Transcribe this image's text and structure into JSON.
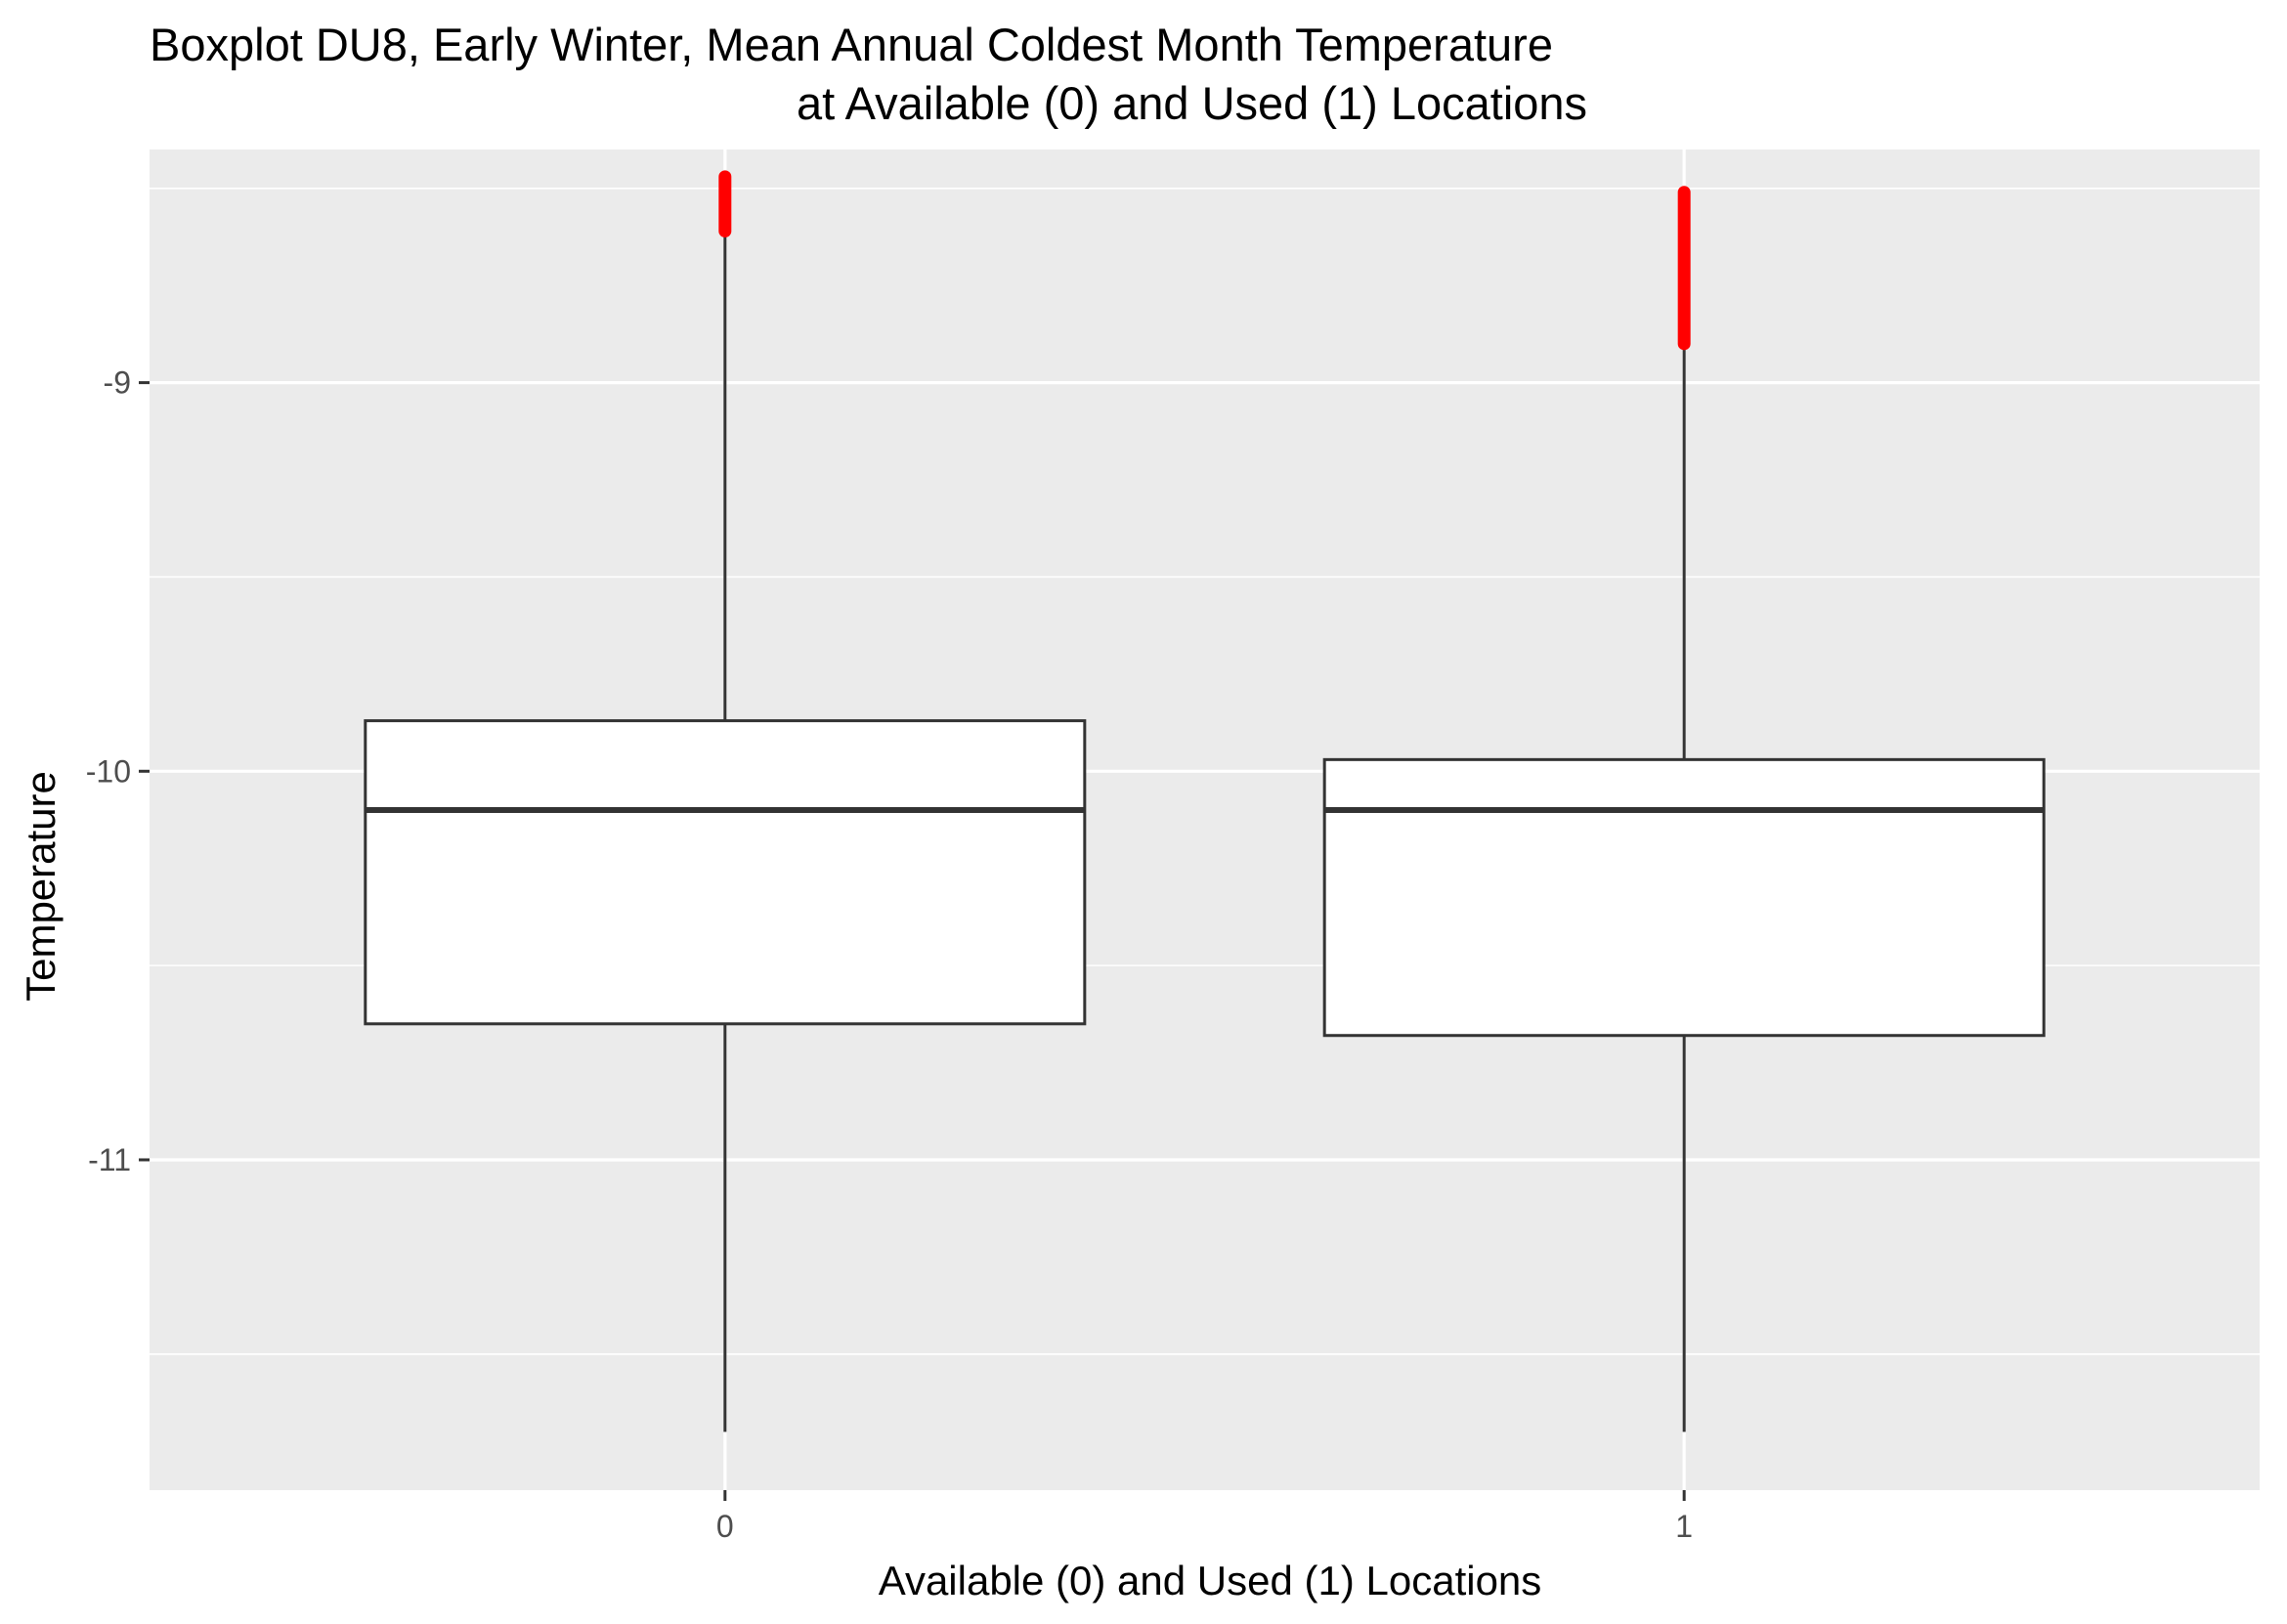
{
  "chart_data": {
    "type": "boxplot",
    "title": "Boxplot DU8, Early Winter, Mean Annual Coldest Month Temperature",
    "subtitle": "at Available (0) and Used (1) Locations",
    "xlabel": "Available (0) and Used (1) Locations",
    "ylabel": "Temperature",
    "categories": [
      "0",
      "1"
    ],
    "y_ticks": [
      -9,
      -10,
      -11
    ],
    "ylim": [
      -11.85,
      -8.4
    ],
    "grid": true,
    "colors": {
      "panel_background": "#ebebeb",
      "grid_line": "#ffffff",
      "box_fill": "#ffffff",
      "box_outline": "#333333",
      "outlier": "#ff0000"
    },
    "boxes": [
      {
        "category": "0",
        "whisker_low": -11.7,
        "q1": -10.65,
        "median": -10.1,
        "q3": -9.87,
        "whisker_high": -8.62,
        "outliers_min": -8.61,
        "outliers_max": -8.47
      },
      {
        "category": "1",
        "whisker_low": -11.7,
        "q1": -10.68,
        "median": -10.1,
        "q3": -9.97,
        "whisker_high": -8.91,
        "outliers_min": -8.9,
        "outliers_max": -8.51
      }
    ]
  }
}
